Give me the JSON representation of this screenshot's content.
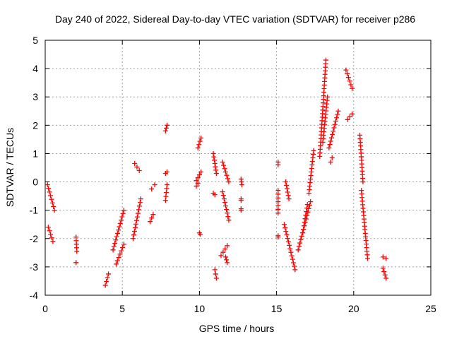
{
  "chart_data": {
    "type": "scatter",
    "title": "Day 240 of 2022, Sidereal Day-to-day VTEC variation (SDTVAR) for receiver p286",
    "xlabel": "GPS time / hours",
    "ylabel": "SDTVAR / TECUs",
    "xlim": [
      0,
      25
    ],
    "ylim": [
      -4,
      5
    ],
    "xticks": [
      "0",
      "5",
      "10",
      "15",
      "20",
      "25"
    ],
    "yticks": [
      "-4",
      "-3",
      "-2",
      "-1",
      "0",
      "1",
      "2",
      "3",
      "4",
      "5"
    ],
    "grid": true,
    "marker": "plus",
    "color": "#ff0000",
    "segments": [
      {
        "x": [
          0.15,
          0.6
        ],
        "y": [
          -0.1,
          -1.0
        ]
      },
      {
        "x": [
          0.2,
          0.5
        ],
        "y": [
          -1.6,
          -2.1
        ]
      },
      {
        "x": [
          2.0,
          2.05
        ],
        "y": [
          -1.95,
          -2.45
        ]
      },
      {
        "x": [
          2.0,
          2.0
        ],
        "y": [
          -2.85,
          -2.85
        ]
      },
      {
        "x": [
          3.9,
          4.1
        ],
        "y": [
          -3.65,
          -3.25
        ]
      },
      {
        "x": [
          4.4,
          5.1
        ],
        "y": [
          -2.4,
          -1.0
        ]
      },
      {
        "x": [
          4.6,
          5.1
        ],
        "y": [
          -2.9,
          -2.2
        ]
      },
      {
        "x": [
          5.7,
          6.2
        ],
        "y": [
          -2.0,
          -0.6
        ]
      },
      {
        "x": [
          5.8,
          6.1
        ],
        "y": [
          0.65,
          0.4
        ]
      },
      {
        "x": [
          6.8,
          7.0
        ],
        "y": [
          -1.4,
          -1.15
        ]
      },
      {
        "x": [
          6.9,
          7.1
        ],
        "y": [
          -0.25,
          -0.1
        ]
      },
      {
        "x": [
          7.8,
          7.9
        ],
        "y": [
          1.8,
          2.0
        ]
      },
      {
        "x": [
          7.8,
          7.9
        ],
        "y": [
          -0.65,
          -0.1
        ]
      },
      {
        "x": [
          7.8,
          7.9
        ],
        "y": [
          0.3,
          0.35
        ]
      },
      {
        "x": [
          9.9,
          10.1
        ],
        "y": [
          1.2,
          1.55
        ]
      },
      {
        "x": [
          9.8,
          10.1
        ],
        "y": [
          0.05,
          0.35
        ]
      },
      {
        "x": [
          9.8,
          9.9
        ],
        "y": [
          -0.15,
          -0.05
        ]
      },
      {
        "x": [
          10.0,
          10.05
        ],
        "y": [
          -1.8,
          -1.85
        ]
      },
      {
        "x": [
          10.9,
          11.1
        ],
        "y": [
          1.0,
          0.3
        ]
      },
      {
        "x": [
          10.9,
          11.0
        ],
        "y": [
          -0.4,
          -0.45
        ]
      },
      {
        "x": [
          11.0,
          11.1
        ],
        "y": [
          -3.1,
          -3.4
        ]
      },
      {
        "x": [
          11.5,
          11.9
        ],
        "y": [
          0.7,
          0.0
        ]
      },
      {
        "x": [
          11.5,
          11.9
        ],
        "y": [
          -0.35,
          -1.35
        ]
      },
      {
        "x": [
          11.4,
          11.8
        ],
        "y": [
          -2.6,
          -2.25
        ]
      },
      {
        "x": [
          11.7,
          11.8
        ],
        "y": [
          -2.65,
          -2.85
        ]
      },
      {
        "x": [
          12.7,
          12.75
        ],
        "y": [
          0.1,
          -0.1
        ]
      },
      {
        "x": [
          12.7,
          12.7
        ],
        "y": [
          -0.6,
          -0.65
        ]
      },
      {
        "x": [
          12.7,
          12.7
        ],
        "y": [
          -0.95,
          -1.0
        ]
      },
      {
        "x": [
          15.1,
          15.1
        ],
        "y": [
          0.7,
          0.6
        ]
      },
      {
        "x": [
          15.1,
          15.1
        ],
        "y": [
          -0.3,
          -1.1
        ]
      },
      {
        "x": [
          15.1,
          15.1
        ],
        "y": [
          -1.9,
          -1.95
        ]
      },
      {
        "x": [
          15.6,
          15.8
        ],
        "y": [
          0.0,
          -0.6
        ]
      },
      {
        "x": [
          15.5,
          16.2
        ],
        "y": [
          -1.5,
          -3.1
        ]
      },
      {
        "x": [
          16.4,
          17.2
        ],
        "y": [
          -2.4,
          -0.7
        ]
      },
      {
        "x": [
          16.7,
          17.0
        ],
        "y": [
          -1.8,
          -0.8
        ]
      },
      {
        "x": [
          17.1,
          17.4
        ],
        "y": [
          -0.4,
          1.1
        ]
      },
      {
        "x": [
          17.8,
          18.2
        ],
        "y": [
          0.9,
          4.3
        ]
      },
      {
        "x": [
          18.0,
          18.3
        ],
        "y": [
          1.4,
          3.0
        ]
      },
      {
        "x": [
          18.5,
          18.6
        ],
        "y": [
          0.7,
          0.85
        ]
      },
      {
        "x": [
          18.4,
          19.0
        ],
        "y": [
          1.2,
          2.5
        ]
      },
      {
        "x": [
          19.5,
          19.9
        ],
        "y": [
          3.95,
          3.3
        ]
      },
      {
        "x": [
          19.6,
          19.9
        ],
        "y": [
          2.2,
          2.4
        ]
      },
      {
        "x": [
          20.4,
          20.6
        ],
        "y": [
          1.65,
          0.0
        ]
      },
      {
        "x": [
          20.5,
          20.9
        ],
        "y": [
          -0.3,
          -2.7
        ]
      },
      {
        "x": [
          21.9,
          22.1
        ],
        "y": [
          -2.65,
          -2.7
        ]
      },
      {
        "x": [
          21.9,
          22.1
        ],
        "y": [
          -3.05,
          -3.4
        ]
      }
    ]
  }
}
